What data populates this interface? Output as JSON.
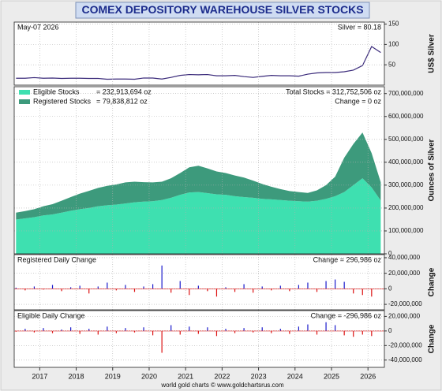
{
  "title": "COMEX DEPOSITORY WAREHOUSE SILVER STOCKS",
  "footer": "world gold charts © www.goldchartsrus.com",
  "chart_data": [
    {
      "type": "line",
      "ylabel": "US$ Silver",
      "notes_left": [
        "May-07  2026"
      ],
      "notes_right": [
        "Silver = 80.18"
      ],
      "xlim": [
        2016.3,
        2026.45
      ],
      "xticks": [
        2017,
        2018,
        2019,
        2020,
        2021,
        2022,
        2023,
        2024,
        2025,
        2026
      ],
      "ylim": [
        0,
        155
      ],
      "yticks": [
        50,
        100,
        150
      ],
      "grid": true,
      "x": [
        2016.35,
        2016.6,
        2016.85,
        2017.1,
        2017.35,
        2017.6,
        2017.85,
        2018.1,
        2018.35,
        2018.6,
        2018.85,
        2019.1,
        2019.35,
        2019.6,
        2019.85,
        2020.1,
        2020.35,
        2020.6,
        2020.85,
        2021.1,
        2021.35,
        2021.6,
        2021.85,
        2022.1,
        2022.35,
        2022.6,
        2022.85,
        2023.1,
        2023.35,
        2023.6,
        2023.85,
        2024.1,
        2024.35,
        2024.6,
        2024.85,
        2025.1,
        2025.35,
        2025.6,
        2025.85,
        2026.1,
        2026.35
      ],
      "series": [
        {
          "name": "Silver",
          "color": "#3a2a7a",
          "values": [
            17,
            17,
            18.5,
            17,
            17.5,
            16.5,
            17,
            17,
            16.5,
            16.5,
            14.5,
            15,
            15,
            14.5,
            17.5,
            17.5,
            15,
            19,
            24,
            26,
            25.5,
            26,
            23,
            23,
            24,
            21,
            19,
            21.5,
            24,
            23,
            23,
            22,
            27,
            30,
            31,
            31,
            33,
            37,
            48,
            95,
            80.18
          ]
        }
      ]
    },
    {
      "type": "stacked_area",
      "ylabel": "Ounces of Silver",
      "notes_right": [
        "Total Stocks = 312,752,506 oz",
        "Change = 0 oz"
      ],
      "xlim": [
        2016.3,
        2026.45
      ],
      "xticks": [
        2017,
        2018,
        2019,
        2020,
        2021,
        2022,
        2023,
        2024,
        2025,
        2026
      ],
      "ylim": [
        0,
        730000000
      ],
      "yticks": [
        0,
        {
          "value": 100000000,
          "label": "100,000,000"
        },
        {
          "value": 200000000,
          "label": "200,000,000"
        },
        {
          "value": 300000000,
          "label": "300,000,000"
        },
        {
          "value": 400000000,
          "label": "400,000,000"
        },
        {
          "value": 500000000,
          "label": "500,000,000"
        },
        {
          "value": 600000000,
          "label": "600,000,000"
        },
        {
          "value": 700000000,
          "label": "700,000,000"
        }
      ],
      "grid": true,
      "x": [
        2016.35,
        2016.6,
        2016.85,
        2017.1,
        2017.35,
        2017.6,
        2017.85,
        2018.1,
        2018.35,
        2018.6,
        2018.85,
        2019.1,
        2019.35,
        2019.6,
        2019.85,
        2020.1,
        2020.35,
        2020.6,
        2020.85,
        2021.1,
        2021.35,
        2021.6,
        2021.85,
        2022.1,
        2022.35,
        2022.6,
        2022.85,
        2023.1,
        2023.35,
        2023.6,
        2023.85,
        2024.1,
        2024.35,
        2024.6,
        2024.85,
        2025.1,
        2025.35,
        2025.6,
        2025.85,
        2026.1,
        2026.35
      ],
      "series": [
        {
          "name": "Eligible Stocks",
          "legend_value": "= 232,913,694 oz",
          "color": "#3ee0b0",
          "values": [
            150000000,
            155000000,
            160000000,
            168000000,
            172000000,
            180000000,
            188000000,
            195000000,
            200000000,
            208000000,
            212000000,
            215000000,
            220000000,
            225000000,
            228000000,
            230000000,
            235000000,
            245000000,
            258000000,
            268000000,
            270000000,
            265000000,
            260000000,
            258000000,
            252000000,
            248000000,
            245000000,
            240000000,
            238000000,
            235000000,
            232000000,
            230000000,
            228000000,
            232000000,
            240000000,
            252000000,
            270000000,
            300000000,
            330000000,
            290000000,
            232913694
          ]
        },
        {
          "name": "Registered Stocks",
          "legend_value": "= 79,838,812 oz",
          "color": "#3d9a7c",
          "values": [
            30000000,
            32000000,
            35000000,
            40000000,
            45000000,
            52000000,
            60000000,
            68000000,
            75000000,
            80000000,
            85000000,
            88000000,
            92000000,
            90000000,
            85000000,
            82000000,
            80000000,
            85000000,
            95000000,
            110000000,
            115000000,
            108000000,
            100000000,
            95000000,
            90000000,
            85000000,
            75000000,
            65000000,
            55000000,
            48000000,
            42000000,
            40000000,
            38000000,
            45000000,
            60000000,
            85000000,
            150000000,
            180000000,
            200000000,
            150000000,
            79838812
          ]
        }
      ]
    },
    {
      "type": "spike",
      "ylabel": "Change",
      "notes_left": [
        "Registered Daily Change"
      ],
      "notes_right": [
        "Change = 296,986 oz"
      ],
      "xlim": [
        2016.3,
        2026.45
      ],
      "xticks": [
        2017,
        2018,
        2019,
        2020,
        2021,
        2022,
        2023,
        2024,
        2025,
        2026
      ],
      "ylim": [
        -27000000,
        44000000
      ],
      "yticks": [
        {
          "value": -20000000,
          "label": "-20,000,000"
        },
        0,
        {
          "value": 20000000,
          "label": "20,000,000"
        },
        {
          "value": 40000000,
          "label": "40,000,000"
        }
      ],
      "grid": true,
      "color": "#1a1acc",
      "negative_color": "#dd1111",
      "x": [
        2016.35,
        2016.6,
        2016.85,
        2017.1,
        2017.35,
        2017.6,
        2017.85,
        2018.1,
        2018.35,
        2018.6,
        2018.85,
        2019.1,
        2019.35,
        2019.6,
        2019.85,
        2020.1,
        2020.35,
        2020.6,
        2020.85,
        2021.1,
        2021.35,
        2021.6,
        2021.85,
        2022.1,
        2022.35,
        2022.6,
        2022.85,
        2023.1,
        2023.35,
        2023.6,
        2023.85,
        2024.1,
        2024.35,
        2024.6,
        2024.85,
        2025.1,
        2025.35,
        2025.6,
        2025.85,
        2026.1,
        2026.35
      ],
      "values": [
        1500000,
        -2000000,
        3000000,
        -1000000,
        5000000,
        -3000000,
        2000000,
        4000000,
        -6000000,
        3000000,
        8000000,
        -2000000,
        5000000,
        -4000000,
        3000000,
        6000000,
        30000000,
        -5000000,
        10000000,
        -8000000,
        4000000,
        -3000000,
        -10000000,
        2000000,
        -4000000,
        6000000,
        -5000000,
        3000000,
        -2000000,
        4000000,
        -3000000,
        5000000,
        8000000,
        -4000000,
        10000000,
        12000000,
        9000000,
        -6000000,
        -8000000,
        -10000000,
        296986
      ]
    },
    {
      "type": "spike",
      "ylabel": "Change",
      "notes_left": [
        "Eligible Daily Change"
      ],
      "notes_right": [
        "Change = -296,986 oz"
      ],
      "xlim": [
        2016.3,
        2026.45
      ],
      "xticks": [
        2017,
        2018,
        2019,
        2020,
        2021,
        2022,
        2023,
        2024,
        2025,
        2026
      ],
      "ylim": [
        -50000000,
        28000000
      ],
      "yticks": [
        {
          "value": -40000000,
          "label": "-40,000,000"
        },
        {
          "value": -20000000,
          "label": "-20,000,000"
        },
        0,
        {
          "value": 20000000,
          "label": "20,000,000"
        }
      ],
      "grid": true,
      "color": "#1a1acc",
      "negative_color": "#dd1111",
      "x": [
        2016.35,
        2016.6,
        2016.85,
        2017.1,
        2017.35,
        2017.6,
        2017.85,
        2018.1,
        2018.35,
        2018.6,
        2018.85,
        2019.1,
        2019.35,
        2019.6,
        2019.85,
        2020.1,
        2020.35,
        2020.6,
        2020.85,
        2021.1,
        2021.35,
        2021.6,
        2021.85,
        2022.1,
        2022.35,
        2022.6,
        2022.85,
        2023.1,
        2023.35,
        2023.6,
        2023.85,
        2024.1,
        2024.35,
        2024.6,
        2024.85,
        2025.1,
        2025.35,
        2025.6,
        2025.85,
        2026.1,
        2026.35
      ],
      "values": [
        -1000000,
        3000000,
        -2000000,
        4000000,
        -3000000,
        2000000,
        5000000,
        -4000000,
        3000000,
        -5000000,
        6000000,
        -3000000,
        4000000,
        -2000000,
        5000000,
        -6000000,
        -30000000,
        8000000,
        -5000000,
        6000000,
        -4000000,
        5000000,
        -7000000,
        3000000,
        -3000000,
        4000000,
        -2000000,
        5000000,
        -3000000,
        3000000,
        -4000000,
        6000000,
        9000000,
        -5000000,
        12000000,
        8000000,
        -6000000,
        -8000000,
        -5000000,
        -7000000,
        -296986
      ]
    }
  ]
}
